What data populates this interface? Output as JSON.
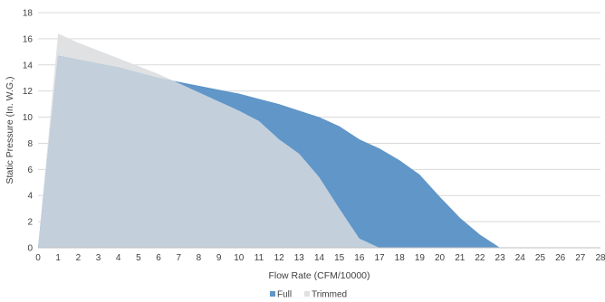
{
  "chart_data": {
    "type": "area",
    "title": "",
    "xlabel": "Flow Rate (CFM/10000)",
    "ylabel": "Static Pressure (In. W.G.)",
    "xlim": [
      0,
      28
    ],
    "ylim": [
      0,
      18
    ],
    "x_ticks": [
      0,
      1,
      2,
      3,
      4,
      5,
      6,
      7,
      8,
      9,
      10,
      11,
      12,
      13,
      14,
      15,
      16,
      17,
      18,
      19,
      20,
      21,
      22,
      23,
      24,
      25,
      26,
      27,
      28
    ],
    "y_ticks": [
      0,
      2,
      4,
      6,
      8,
      10,
      12,
      14,
      16,
      18
    ],
    "grid": "horizontal",
    "legend_position": "bottom",
    "series": [
      {
        "name": "Full",
        "color": "#6096c8",
        "points": [
          [
            0,
            0
          ],
          [
            1,
            14.7
          ],
          [
            2,
            14.4
          ],
          [
            3,
            14.1
          ],
          [
            4,
            13.8
          ],
          [
            5,
            13.4
          ],
          [
            6,
            13.0
          ],
          [
            7,
            12.7
          ],
          [
            8,
            12.4
          ],
          [
            9,
            12.1
          ],
          [
            10,
            11.8
          ],
          [
            11,
            11.4
          ],
          [
            12,
            11.0
          ],
          [
            13,
            10.5
          ],
          [
            14,
            10.0
          ],
          [
            15,
            9.3
          ],
          [
            16,
            8.3
          ],
          [
            17,
            7.6
          ],
          [
            18,
            6.7
          ],
          [
            19,
            5.6
          ],
          [
            20,
            3.9
          ],
          [
            21,
            2.3
          ],
          [
            22,
            1.0
          ],
          [
            23,
            0
          ]
        ]
      },
      {
        "name": "Trimmed",
        "color": "#dfe1e3",
        "points": [
          [
            0,
            0
          ],
          [
            1,
            16.4
          ],
          [
            2,
            15.7
          ],
          [
            3,
            15.1
          ],
          [
            4,
            14.5
          ],
          [
            5,
            13.9
          ],
          [
            6,
            13.3
          ],
          [
            7,
            12.6
          ],
          [
            8,
            11.9
          ],
          [
            9,
            11.2
          ],
          [
            10,
            10.5
          ],
          [
            11,
            9.7
          ],
          [
            12,
            8.3
          ],
          [
            13,
            7.2
          ],
          [
            14,
            5.4
          ],
          [
            15,
            3.0
          ],
          [
            16,
            0.7
          ],
          [
            17,
            0
          ]
        ]
      }
    ]
  },
  "colors": {
    "overlap": "#c3d0dc",
    "grid": "#d9d9d9",
    "axis": "#bfbfbf"
  }
}
